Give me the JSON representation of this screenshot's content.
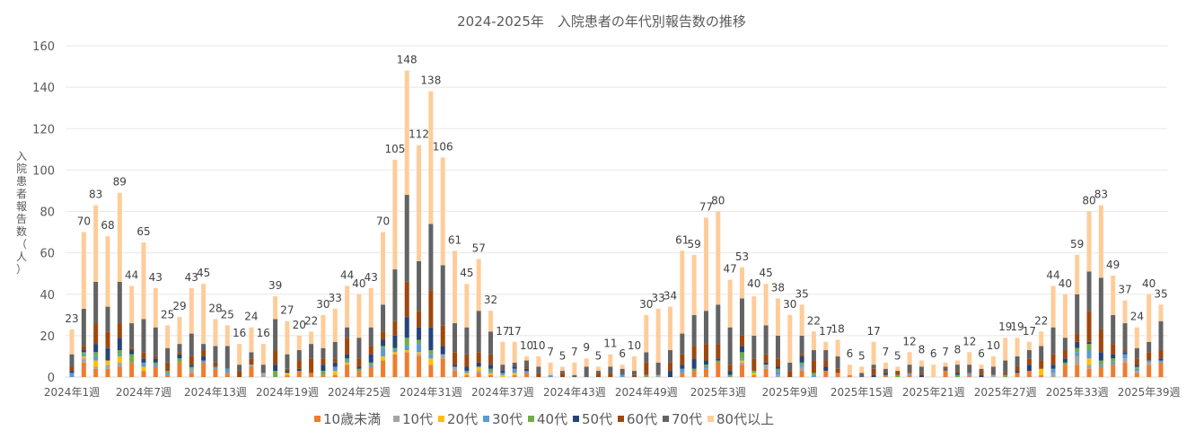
{
  "chart_data": {
    "type": "bar",
    "stacked": true,
    "title": "2024-2025年　入院患者の年代別報告数の推移",
    "xlabel": "",
    "ylabel": "入院患者報告数（人）",
    "ylim": [
      0,
      160
    ],
    "yticks": [
      0,
      20,
      40,
      60,
      80,
      100,
      120,
      140,
      160
    ],
    "grid": true,
    "legend_position": "bottom",
    "x_tick_labels": [
      "2024年1週",
      "2024年7週",
      "2024年13週",
      "2024年19週",
      "2024年25週",
      "2024年31週",
      "2024年37週",
      "2024年43週",
      "2024年49週",
      "2025年3週",
      "2025年9週",
      "2025年15週",
      "2025年21週",
      "2025年27週",
      "2025年33週",
      "2025年39週"
    ],
    "x_tick_every": 6,
    "categories": [
      "2024年1週",
      "2024年2週",
      "2024年3週",
      "2024年4週",
      "2024年5週",
      "2024年6週",
      "2024年7週",
      "2024年8週",
      "2024年9週",
      "2024年10週",
      "2024年11週",
      "2024年12週",
      "2024年13週",
      "2024年14週",
      "2024年15週",
      "2024年16週",
      "2024年17週",
      "2024年18週",
      "2024年19週",
      "2024年20週",
      "2024年21週",
      "2024年22週",
      "2024年23週",
      "2024年24週",
      "2024年25週",
      "2024年26週",
      "2024年27週",
      "2024年28週",
      "2024年29週",
      "2024年30週",
      "2024年31週",
      "2024年32週",
      "2024年33週",
      "2024年34週",
      "2024年35週",
      "2024年36週",
      "2024年37週",
      "2024年38週",
      "2024年39週",
      "2024年40週",
      "2024年41週",
      "2024年42週",
      "2024年43週",
      "2024年44週",
      "2024年45週",
      "2024年46週",
      "2024年47週",
      "2024年48週",
      "2024年49週",
      "2024年50週",
      "2024年51週",
      "2024年52週",
      "2025年1週",
      "2025年2週",
      "2025年3週",
      "2025年4週",
      "2025年5週",
      "2025年6週",
      "2025年7週",
      "2025年8週",
      "2025年9週",
      "2025年10週",
      "2025年11週",
      "2025年12週",
      "2025年13週",
      "2025年14週",
      "2025年15週",
      "2025年16週",
      "2025年17週",
      "2025年18週",
      "2025年19週",
      "2025年20週",
      "2025年21週",
      "2025年22週",
      "2025年23週",
      "2025年24週",
      "2025年25週",
      "2025年26週",
      "2025年27週",
      "2025年28週",
      "2025年29週",
      "2025年30週",
      "2025年31週",
      "2025年32週",
      "2025年33週",
      "2025年34週",
      "2025年35週",
      "2025年36週",
      "2025年37週",
      "2025年38週",
      "2025年39週",
      "2025年40週"
    ],
    "totals": [
      23,
      70,
      83,
      68,
      89,
      44,
      65,
      43,
      25,
      29,
      43,
      45,
      28,
      25,
      16,
      24,
      16,
      39,
      27,
      20,
      22,
      30,
      33,
      44,
      40,
      43,
      70,
      105,
      148,
      112,
      138,
      106,
      61,
      45,
      57,
      32,
      17,
      17,
      10,
      10,
      7,
      5,
      7,
      9,
      5,
      11,
      6,
      10,
      30,
      33,
      34,
      61,
      59,
      77,
      80,
      47,
      53,
      40,
      45,
      38,
      30,
      35,
      22,
      17,
      18,
      6,
      5,
      17,
      7,
      5,
      12,
      8,
      6,
      7,
      8,
      12,
      6,
      10,
      19,
      19,
      17,
      22,
      44,
      40,
      59,
      80,
      83,
      49,
      37,
      24,
      40,
      35
    ],
    "series": [
      {
        "name": "10歳未満",
        "color": "#ED7D31",
        "values": [
          0,
          7,
          4,
          4,
          5,
          7,
          3,
          5,
          1,
          7,
          2,
          7,
          4,
          2,
          0,
          5,
          0,
          0,
          1,
          3,
          2,
          1,
          1,
          6,
          3,
          5,
          8,
          11,
          12,
          10,
          6,
          9,
          3,
          1,
          2,
          1,
          0,
          1,
          2,
          0,
          0,
          0,
          0,
          0,
          0,
          0,
          0,
          0,
          0,
          0,
          0,
          2,
          3,
          4,
          7,
          0,
          6,
          1,
          4,
          0,
          0,
          3,
          0,
          3,
          2,
          1,
          0,
          0,
          1,
          0,
          1,
          0,
          0,
          3,
          0,
          1,
          0,
          0,
          0,
          2,
          3,
          1,
          0,
          6,
          6,
          4,
          5,
          6,
          7,
          2,
          6,
          7
        ]
      },
      {
        "name": "10代",
        "color": "#A5A5A5",
        "values": [
          0,
          2,
          1,
          2,
          2,
          0,
          0,
          0,
          0,
          0,
          2,
          0,
          0,
          0,
          0,
          1,
          2,
          0,
          0,
          0,
          0,
          0,
          0,
          0,
          0,
          0,
          0,
          0,
          0,
          1,
          0,
          2,
          2,
          0,
          1,
          0,
          0,
          0,
          0,
          0,
          0,
          0,
          0,
          0,
          0,
          0,
          0,
          0,
          0,
          1,
          0,
          0,
          0,
          0,
          0,
          0,
          1,
          0,
          2,
          1,
          0,
          2,
          0,
          0,
          0,
          0,
          0,
          0,
          0,
          0,
          0,
          0,
          0,
          0,
          0,
          0,
          0,
          1,
          0,
          0,
          0,
          0,
          2,
          0,
          4,
          2,
          0,
          0,
          2,
          1,
          1,
          0
        ]
      },
      {
        "name": "20代",
        "color": "#FFC000",
        "values": [
          0,
          1,
          3,
          2,
          3,
          0,
          2,
          0,
          0,
          0,
          0,
          0,
          0,
          0,
          0,
          0,
          0,
          0,
          1,
          0,
          0,
          0,
          2,
          1,
          0,
          0,
          2,
          1,
          1,
          1,
          3,
          0,
          0,
          1,
          2,
          1,
          1,
          1,
          0,
          0,
          0,
          0,
          0,
          0,
          0,
          0,
          0,
          0,
          0,
          0,
          0,
          0,
          0,
          0,
          0,
          0,
          1,
          1,
          0,
          0,
          0,
          0,
          0,
          0,
          0,
          0,
          0,
          0,
          0,
          0,
          0,
          0,
          0,
          0,
          0,
          0,
          0,
          0,
          0,
          0,
          0,
          3,
          0,
          0,
          0,
          3,
          0,
          0,
          0,
          0,
          0,
          0
        ]
      },
      {
        "name": "30代",
        "color": "#5B9BD5",
        "values": [
          2,
          1,
          2,
          0,
          1,
          0,
          2,
          1,
          1,
          0,
          0,
          1,
          1,
          2,
          0,
          0,
          0,
          0,
          0,
          0,
          0,
          0,
          2,
          1,
          0,
          1,
          4,
          1,
          2,
          4,
          2,
          0,
          0,
          1,
          0,
          1,
          1,
          2,
          1,
          0,
          1,
          0,
          0,
          0,
          0,
          0,
          1,
          0,
          0,
          0,
          0,
          2,
          0,
          1,
          0,
          0,
          1,
          0,
          0,
          2,
          0,
          1,
          1,
          0,
          0,
          0,
          0,
          0,
          0,
          0,
          1,
          0,
          0,
          0,
          0,
          1,
          0,
          0,
          0,
          0,
          0,
          0,
          2,
          0,
          2,
          4,
          1,
          1,
          2,
          1,
          1,
          1
        ]
      },
      {
        "name": "40代",
        "color": "#70AD47",
        "values": [
          0,
          1,
          2,
          0,
          2,
          4,
          0,
          1,
          1,
          2,
          1,
          0,
          0,
          0,
          0,
          0,
          0,
          3,
          0,
          0,
          0,
          2,
          0,
          1,
          1,
          1,
          1,
          1,
          4,
          2,
          2,
          0,
          0,
          0,
          0,
          1,
          0,
          0,
          0,
          0,
          0,
          0,
          0,
          0,
          0,
          0,
          0,
          0,
          1,
          0,
          0,
          0,
          1,
          1,
          1,
          1,
          3,
          1,
          0,
          1,
          0,
          1,
          1,
          0,
          0,
          0,
          0,
          0,
          0,
          1,
          0,
          0,
          0,
          0,
          1,
          0,
          0,
          0,
          1,
          0,
          0,
          0,
          0,
          1,
          2,
          3,
          2,
          2,
          0,
          1,
          0,
          0
        ]
      },
      {
        "name": "50代",
        "color": "#264478",
        "values": [
          1,
          1,
          4,
          6,
          6,
          2,
          2,
          2,
          0,
          2,
          1,
          2,
          0,
          0,
          0,
          0,
          0,
          3,
          1,
          1,
          0,
          3,
          2,
          2,
          1,
          4,
          3,
          6,
          10,
          6,
          11,
          4,
          1,
          2,
          2,
          2,
          1,
          1,
          1,
          0,
          0,
          0,
          0,
          0,
          0,
          0,
          0,
          0,
          0,
          0,
          3,
          2,
          5,
          2,
          1,
          2,
          3,
          0,
          1,
          1,
          0,
          3,
          0,
          2,
          0,
          0,
          0,
          1,
          1,
          0,
          0,
          1,
          0,
          0,
          1,
          0,
          1,
          0,
          0,
          1,
          3,
          0,
          2,
          2,
          3,
          1,
          4,
          2,
          1,
          1,
          0,
          1
        ]
      },
      {
        "name": "60代",
        "color": "#9E480E",
        "values": [
          2,
          2,
          10,
          8,
          7,
          1,
          3,
          1,
          4,
          1,
          4,
          3,
          2,
          0,
          3,
          3,
          0,
          7,
          1,
          4,
          7,
          3,
          2,
          8,
          4,
          4,
          4,
          7,
          17,
          8,
          18,
          10,
          6,
          6,
          5,
          5,
          0,
          0,
          1,
          2,
          0,
          2,
          0,
          0,
          2,
          2,
          0,
          1,
          6,
          0,
          4,
          5,
          6,
          8,
          7,
          3,
          5,
          6,
          4,
          4,
          3,
          1,
          6,
          3,
          2,
          0,
          0,
          3,
          0,
          2,
          1,
          1,
          0,
          0,
          1,
          0,
          2,
          0,
          1,
          2,
          3,
          4,
          5,
          4,
          4,
          15,
          11,
          5,
          1,
          3,
          4,
          4
        ]
      },
      {
        "name": "70代",
        "color": "#636363",
        "values": [
          6,
          18,
          20,
          12,
          20,
          12,
          16,
          14,
          7,
          4,
          11,
          3,
          8,
          11,
          3,
          3,
          4,
          15,
          7,
          5,
          7,
          5,
          8,
          5,
          10,
          9,
          13,
          25,
          42,
          24,
          32,
          29,
          14,
          13,
          20,
          11,
          3,
          2,
          3,
          3,
          0,
          1,
          1,
          5,
          1,
          3,
          3,
          2,
          5,
          6,
          6,
          10,
          15,
          16,
          19,
          18,
          18,
          11,
          14,
          11,
          4,
          9,
          5,
          5,
          6,
          0,
          2,
          2,
          2,
          0,
          3,
          3,
          0,
          2,
          3,
          4,
          1,
          4,
          6,
          5,
          4,
          7,
          13,
          6,
          19,
          19,
          25,
          14,
          13,
          5,
          5,
          14
        ]
      },
      {
        "name": "80代以上",
        "color": "#FFCC99",
        "values": [
          12,
          37,
          37,
          34,
          43,
          18,
          37,
          19,
          11,
          13,
          22,
          29,
          13,
          10,
          10,
          12,
          10,
          11,
          16,
          7,
          6,
          16,
          16,
          20,
          21,
          19,
          35,
          53,
          60,
          56,
          64,
          52,
          35,
          21,
          25,
          10,
          11,
          10,
          2,
          5,
          6,
          2,
          6,
          4,
          2,
          6,
          2,
          7,
          18,
          26,
          21,
          40,
          29,
          45,
          45,
          23,
          15,
          19,
          20,
          18,
          23,
          15,
          9,
          4,
          8,
          5,
          3,
          11,
          3,
          2,
          6,
          3,
          6,
          2,
          2,
          6,
          2,
          5,
          11,
          9,
          4,
          7,
          20,
          21,
          19,
          29,
          35,
          19,
          11,
          10,
          23,
          8
        ]
      }
    ]
  }
}
